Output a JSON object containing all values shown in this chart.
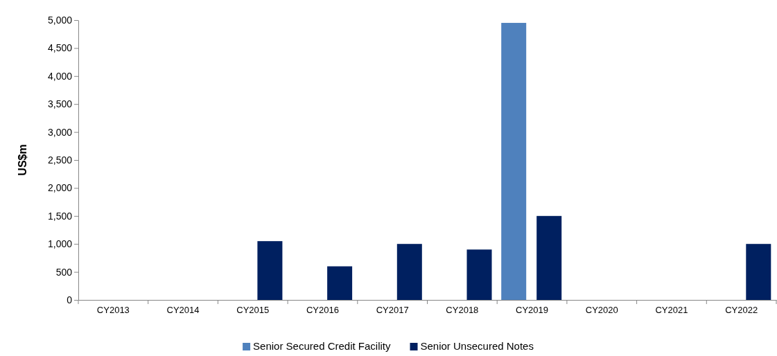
{
  "chart_data": {
    "type": "bar",
    "ylabel": "US$m",
    "categories": [
      "CY2013",
      "CY2014",
      "CY2015",
      "CY2016",
      "CY2017",
      "CY2018",
      "CY2019",
      "CY2020",
      "CY2021",
      "CY2022"
    ],
    "series": [
      {
        "name": "Senior Secured Credit Facility",
        "color": "#4f81bd",
        "values": [
          null,
          null,
          null,
          null,
          null,
          null,
          4950,
          null,
          null,
          null
        ]
      },
      {
        "name": "Senior Unsecured Notes",
        "color": "#002060",
        "values": [
          null,
          null,
          1050,
          600,
          1000,
          900,
          1500,
          null,
          null,
          1000
        ]
      }
    ],
    "ylim": [
      0,
      5000
    ],
    "yticks": [
      0,
      500,
      {
        "value": 1000,
        "label": "1,000"
      },
      {
        "value": 1500,
        "label": "1,500"
      },
      {
        "value": 2000,
        "label": "2,000"
      },
      {
        "value": 2500,
        "label": "2,500"
      },
      {
        "value": 3000,
        "label": "3,000"
      },
      {
        "value": 3500,
        "label": "3,500"
      },
      {
        "value": 4000,
        "label": "4,000"
      },
      {
        "value": 4500,
        "label": "4,500"
      },
      {
        "value": 5000,
        "label": "5,000"
      }
    ],
    "grid": false,
    "legend": "bottom"
  }
}
